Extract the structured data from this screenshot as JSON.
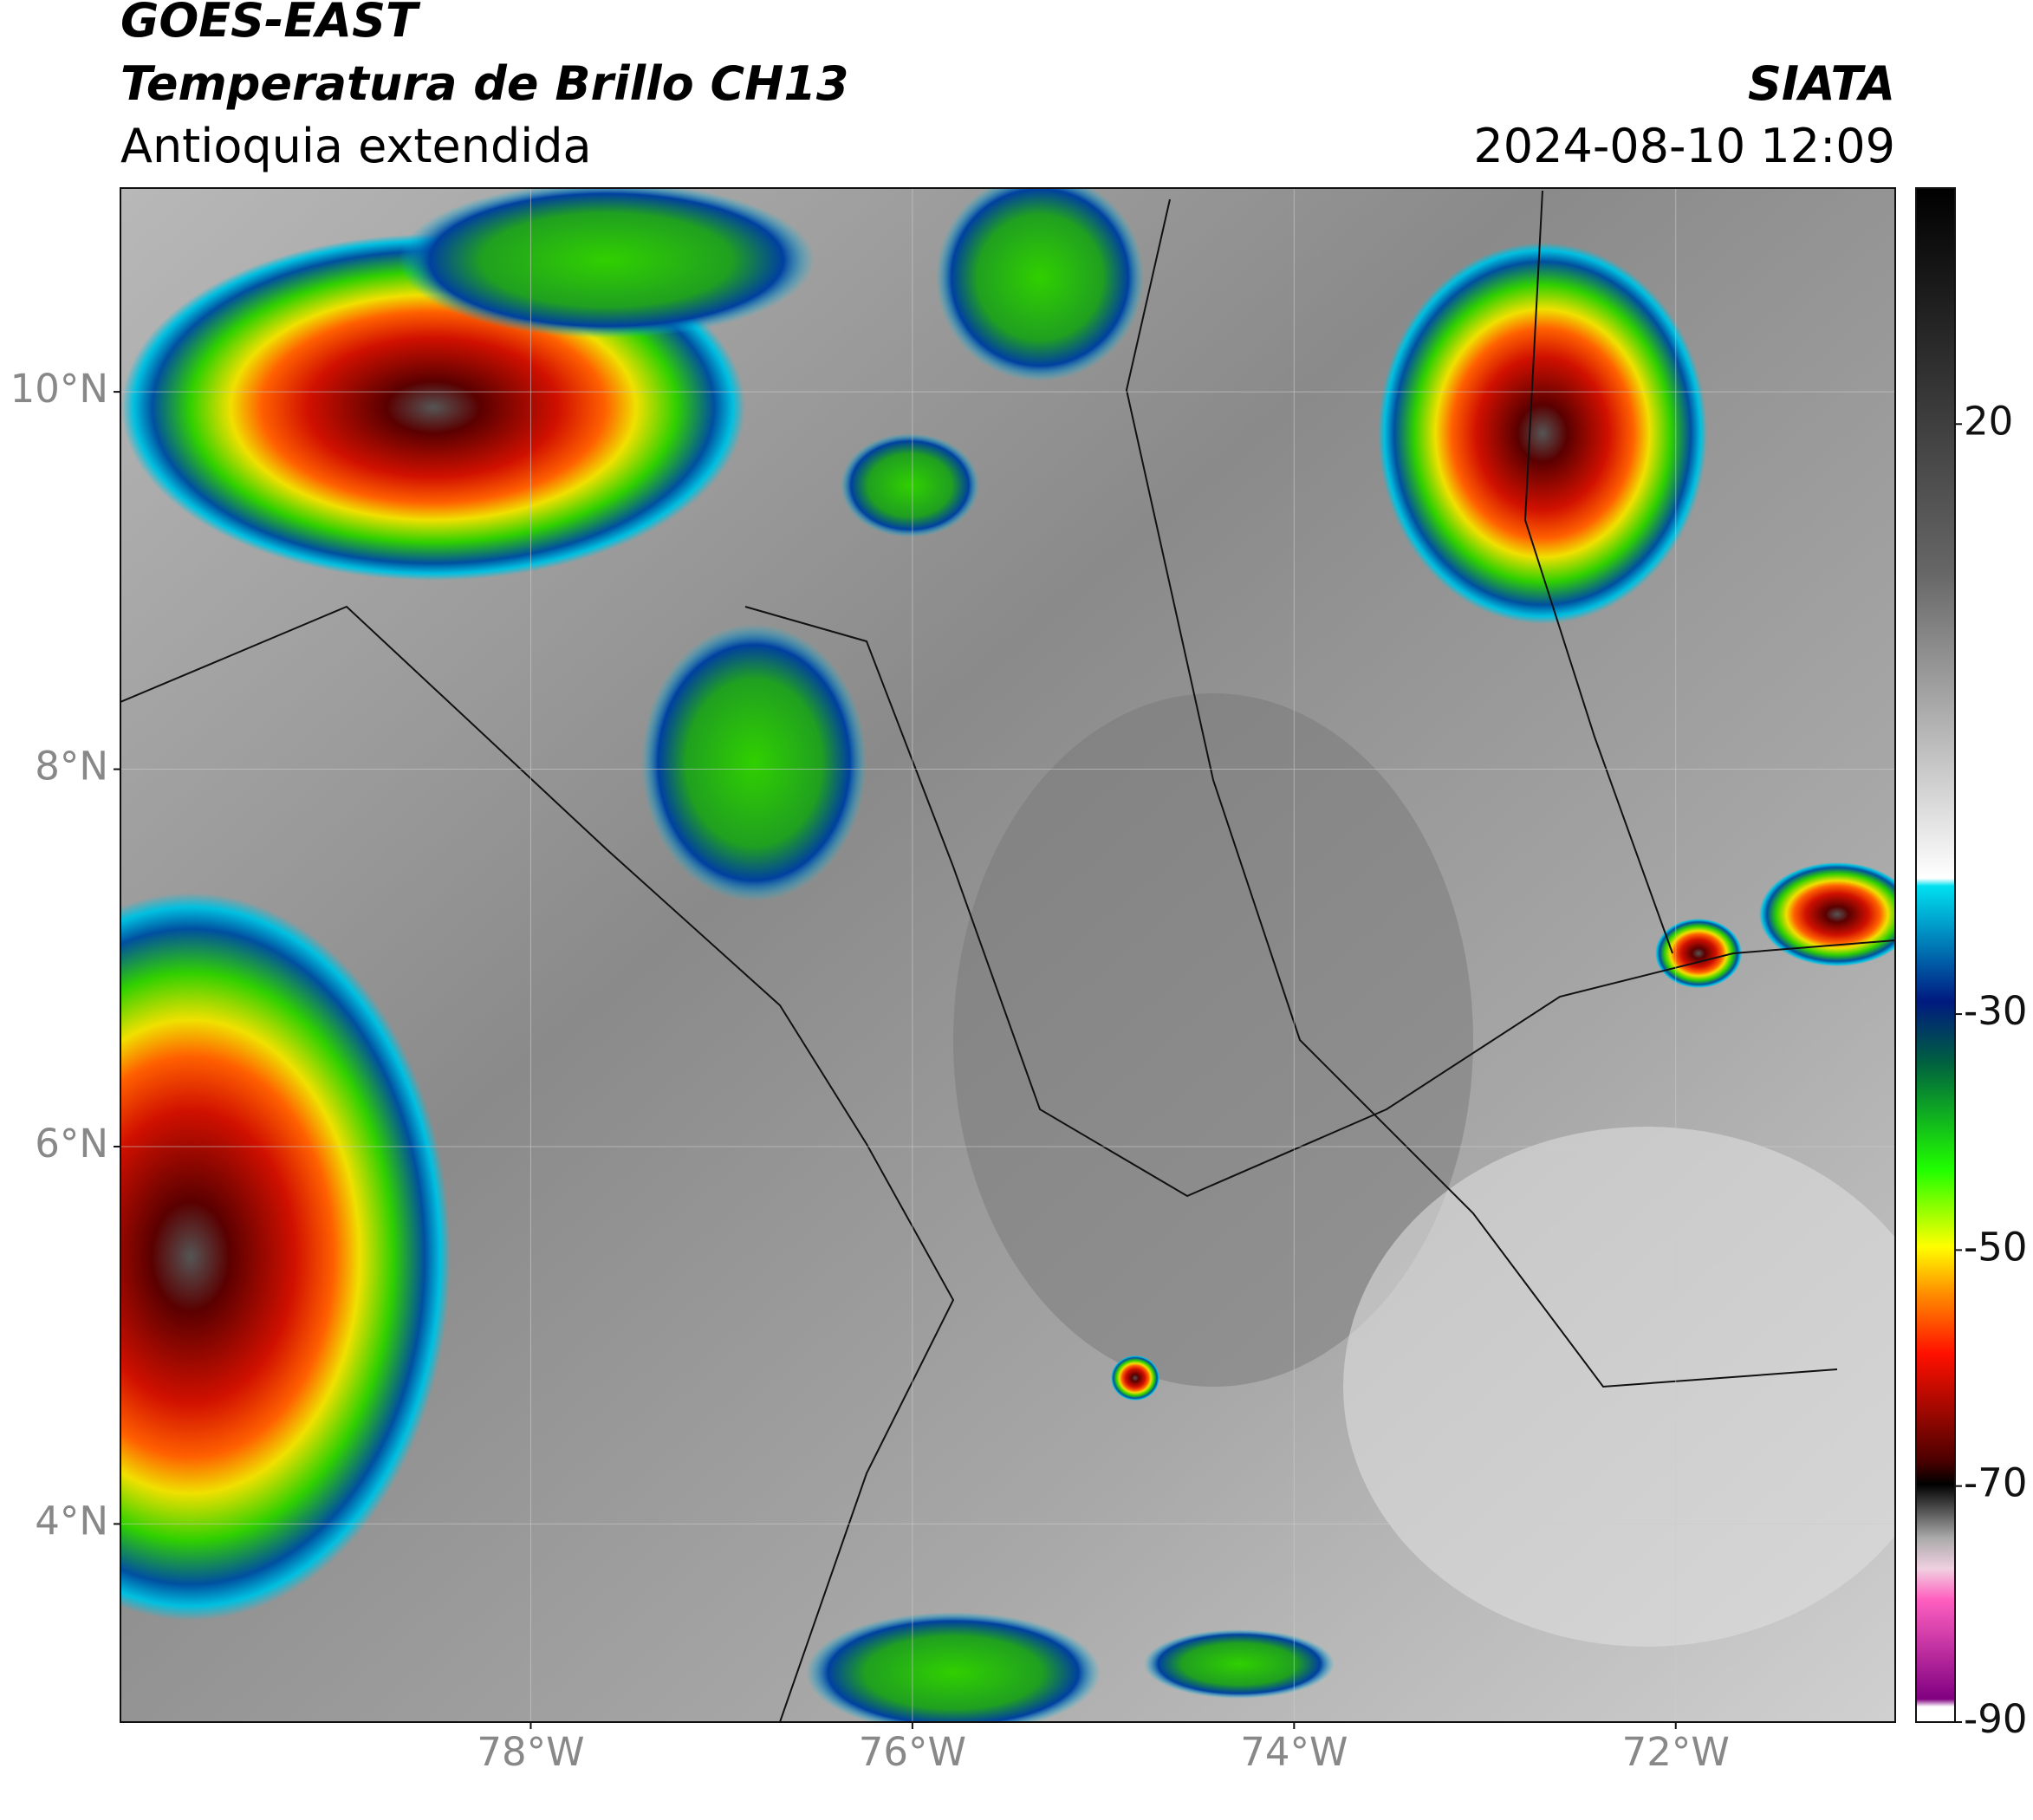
{
  "header": {
    "title": "GOES-EAST",
    "subtitle": "Temperatura de Brillo CH13",
    "region": "Antioquia extendida",
    "source": "SIATA",
    "datetime": "2024-08-10 12:09"
  },
  "map": {
    "xlim": [
      -80.15,
      -70.85
    ],
    "ylim": [
      2.95,
      11.08
    ],
    "xticks": [
      {
        "value": -78,
        "label": "78°W"
      },
      {
        "value": -76,
        "label": "76°W"
      },
      {
        "value": -74,
        "label": "74°W"
      },
      {
        "value": -72,
        "label": "72°W"
      }
    ],
    "yticks": [
      {
        "value": 10,
        "label": "10°N"
      },
      {
        "value": 8,
        "label": "8°N"
      },
      {
        "value": 6,
        "label": "6°N"
      },
      {
        "value": 4,
        "label": "4°N"
      }
    ],
    "grid": true
  },
  "colorbar": {
    "lim": [
      -90,
      40
    ],
    "ticks": [
      20,
      -30,
      -50,
      -70,
      -90
    ]
  }
}
